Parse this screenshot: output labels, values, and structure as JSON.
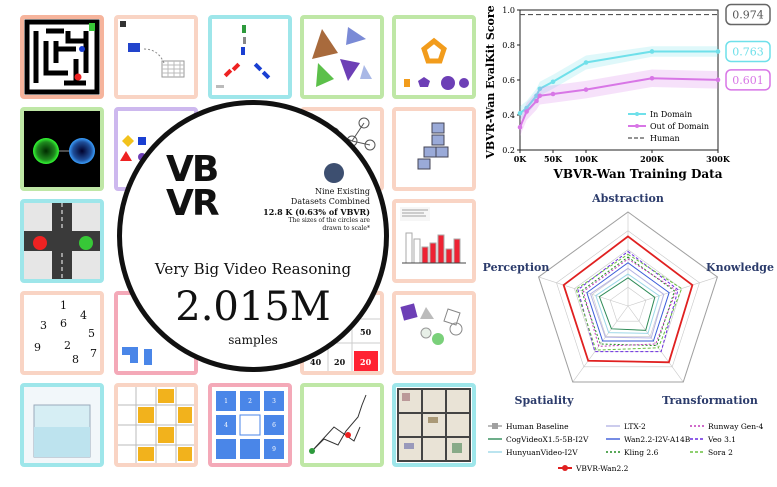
{
  "circle": {
    "logo_top": "VB",
    "logo_bottom": "VR",
    "subtitle": "Very Big Video Reasoning",
    "big_number": "2.015M",
    "unit": "samples",
    "note_line1": "Nine Existing",
    "note_line2": "Datasets Combined",
    "note_line3": "12.8 K (0.63% of VBVR)",
    "note_line4": "The sizes of the circles are",
    "note_line5": "drawn to scale*"
  },
  "tiles": {
    "maze_marker": "",
    "numbers": [
      "1",
      "4",
      "3",
      "6",
      "5",
      "9",
      "2",
      "7",
      "8"
    ],
    "grid_numbers": [
      "50",
      "40",
      "20",
      "20"
    ],
    "sudoku": [
      "1",
      "2",
      "3",
      "4",
      "",
      "6",
      "",
      "",
      "9"
    ]
  },
  "colors": {
    "in_domain": "#6fe0ea",
    "out_domain": "#d876e6",
    "human": "#555555",
    "radar_vbvr": "#e02020",
    "radar_human": "#a0a0a0"
  },
  "chart_data": [
    {
      "type": "line",
      "xlabel": "VBVR-Wan Training Data",
      "ylabel": "VBVR-Wan EvalKit Score",
      "xlim": [
        0,
        300000
      ],
      "ylim": [
        0.2,
        1.0
      ],
      "x_ticks": [
        0,
        50000,
        100000,
        200000,
        300000
      ],
      "x_tick_labels": [
        "0K",
        "50K",
        "100K",
        "200K",
        "300K"
      ],
      "y_ticks": [
        0.2,
        0.4,
        0.6,
        0.8,
        1.0
      ],
      "y_tick_labels": [
        "0.2",
        "0.4",
        "0.6",
        "0.8",
        "1.0"
      ],
      "legend_position": "bottom-right",
      "series": [
        {
          "name": "In Domain",
          "x": [
            0,
            10000,
            25000,
            30000,
            50000,
            100000,
            200000,
            300000
          ],
          "y": [
            0.41,
            0.44,
            0.51,
            0.55,
            0.59,
            0.7,
            0.763,
            0.763
          ],
          "band": [
            0.04,
            0.04,
            0.04,
            0.04,
            0.04,
            0.04,
            0.03,
            0.03
          ],
          "label": "0.763"
        },
        {
          "name": "Out of Domain",
          "x": [
            0,
            10000,
            25000,
            30000,
            50000,
            100000,
            200000,
            300000
          ],
          "y": [
            0.33,
            0.42,
            0.48,
            0.51,
            0.52,
            0.545,
            0.61,
            0.601
          ],
          "band": [
            0.05,
            0.05,
            0.05,
            0.05,
            0.05,
            0.05,
            0.05,
            0.05
          ],
          "label": "0.601"
        },
        {
          "name": "Human",
          "x": [
            0,
            300000
          ],
          "y": [
            0.974,
            0.974
          ],
          "label": "0.974"
        }
      ]
    },
    {
      "type": "radar",
      "axes": [
        "Abstraction",
        "Knowledge",
        "Transformation",
        "Spatiality",
        "Perception"
      ],
      "rmax": 1.0,
      "series": [
        {
          "name": "Human Baseline",
          "color": "#a0a0a0",
          "dash": "",
          "values": [
            1.0,
            1.0,
            1.0,
            1.0,
            1.0
          ]
        },
        {
          "name": "CogVideoX1.5-5B-I2V",
          "color": "#2e8b57",
          "dash": "",
          "values": [
            0.3,
            0.3,
            0.32,
            0.3,
            0.32
          ]
        },
        {
          "name": "HunyuanVideo-I2V",
          "color": "#9ed8e8",
          "dash": "",
          "values": [
            0.34,
            0.35,
            0.36,
            0.35,
            0.36
          ]
        },
        {
          "name": "LTX-2",
          "color": "#b5b5e5",
          "dash": "",
          "values": [
            0.4,
            0.4,
            0.42,
            0.41,
            0.42
          ]
        },
        {
          "name": "Wan2.2-I2V-A14B",
          "color": "#3a5bd9",
          "dash": "",
          "values": [
            0.46,
            0.46,
            0.46,
            0.46,
            0.46
          ]
        },
        {
          "name": "Kling 2.6",
          "color": "#228b22",
          "dash": "2,2",
          "values": [
            0.52,
            0.52,
            0.52,
            0.5,
            0.52
          ]
        },
        {
          "name": "Runway Gen-4",
          "color": "#c03ab8",
          "dash": "2,2",
          "values": [
            0.5,
            0.54,
            0.5,
            0.53,
            0.5
          ]
        },
        {
          "name": "Veo 3.1",
          "color": "#6a2ae0",
          "dash": "3,2",
          "values": [
            0.58,
            0.56,
            0.6,
            0.6,
            0.56
          ]
        },
        {
          "name": "Sora 2",
          "color": "#6ac040",
          "dash": "3,2",
          "values": [
            0.55,
            0.6,
            0.55,
            0.58,
            0.58
          ]
        },
        {
          "name": "VBVR-Wan2.2",
          "color": "#e02020",
          "dash": "",
          "values": [
            0.74,
            0.72,
            0.74,
            0.72,
            0.72
          ]
        }
      ],
      "legend_position": "bottom"
    }
  ]
}
